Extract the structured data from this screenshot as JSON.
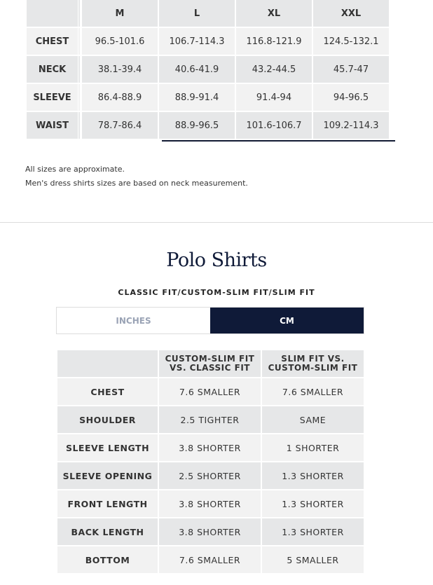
{
  "size_table": {
    "headers": [
      "",
      "M",
      "L",
      "XL",
      "XXL"
    ],
    "rows": [
      {
        "label": "CHEST",
        "values": [
          "96.5-101.6",
          "106.7-114.3",
          "116.8-121.9",
          "124.5-132.1"
        ]
      },
      {
        "label": "NECK",
        "values": [
          "38.1-39.4",
          "40.6-41.9",
          "43.2-44.5",
          "45.7-47"
        ]
      },
      {
        "label": "SLEEVE",
        "values": [
          "86.4-88.9",
          "88.9-91.4",
          "91.4-94",
          "94-96.5"
        ]
      },
      {
        "label": "WAIST",
        "values": [
          "78.7-86.4",
          "88.9-96.5",
          "101.6-106.7",
          "109.2-114.3"
        ]
      }
    ]
  },
  "notes": [
    "All sizes are approximate.",
    "Men's dress shirts sizes are based on neck measurement."
  ],
  "polo": {
    "title": "Polo Shirts",
    "subtitle": "CLASSIC FIT/CUSTOM-SLIM FIT/SLIM FIT",
    "units": {
      "inches": "INCHES",
      "cm": "CM",
      "selected": "CM"
    },
    "headers": [
      "",
      "CUSTOM-SLIM FIT VS. CLASSIC FIT",
      "SLIM FIT VS. CUSTOM-SLIM FIT"
    ],
    "rows": [
      {
        "label": "CHEST",
        "values": [
          "7.6 SMALLER",
          "7.6 SMALLER"
        ]
      },
      {
        "label": "SHOULDER",
        "values": [
          "2.5 TIGHTER",
          "SAME"
        ]
      },
      {
        "label": "SLEEVE LENGTH",
        "values": [
          "3.8 SHORTER",
          "1 SHORTER"
        ]
      },
      {
        "label": "SLEEVE OPENING",
        "values": [
          "2.5 SHORTER",
          "1.3 SHORTER"
        ]
      },
      {
        "label": "FRONT LENGTH",
        "values": [
          "3.8 SHORTER",
          "1.3 SHORTER"
        ]
      },
      {
        "label": "BACK LENGTH",
        "values": [
          "3.8 SHORTER",
          "1.3 SHORTER"
        ]
      },
      {
        "label": "BOTTOM",
        "values": [
          "7.6 SMALLER",
          "5 SMALLER"
        ]
      }
    ]
  },
  "colors": {
    "navy": "#0f1a38",
    "row_light": "#f2f2f2",
    "row_dark": "#e6e7e8"
  }
}
